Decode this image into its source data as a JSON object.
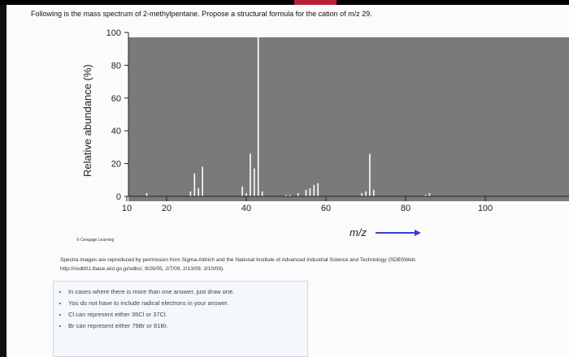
{
  "question": "Following is the mass spectrum of 2-methylpentane. Propose a structural formula for the cation of m/z 29.",
  "credit": "© Cengage Learning",
  "source": {
    "line1": "Spectra images are reproduced by permission from Sigma-Aldrich and the National Institute of Advanced Industrial Science and Technology (SDBSWeb:",
    "line2": "http://riodb01.ibase.aist.go.jp/sdbs/, 8/26/05, 2/7/09, 2/13/09, 3/10/09)."
  },
  "notes": [
    "In cases where there is more than one answer, just draw one.",
    "You do not have to include radical electrons in your answer.",
    "Cl can represent either 35Cl or 37Cl.",
    "Br can represent either 79Br or 81Br."
  ],
  "colors": {
    "plot_background": "#7a7a7a",
    "peak": "#ffffff",
    "arrow": "#3f3fd0"
  },
  "chart_data": {
    "type": "bar",
    "title": "",
    "xlabel": "m/z",
    "ylabel": "Relative abundance (%)",
    "xlim": [
      5,
      117
    ],
    "ylim": [
      0,
      100
    ],
    "yticks": [
      0,
      20,
      40,
      60,
      80,
      100
    ],
    "xticks": [
      10,
      20,
      40,
      60,
      80,
      100
    ],
    "grid": false,
    "x": [
      15,
      26,
      27,
      28,
      29,
      39,
      40,
      41,
      42,
      43,
      44,
      50,
      51,
      53,
      55,
      56,
      57,
      58,
      69,
      70,
      71,
      72,
      85,
      86
    ],
    "values": [
      2,
      3,
      14,
      5,
      18,
      6,
      2,
      26,
      17,
      100,
      3,
      1,
      1,
      2,
      4,
      5,
      7,
      8,
      2,
      3,
      26,
      4,
      1,
      2
    ]
  }
}
